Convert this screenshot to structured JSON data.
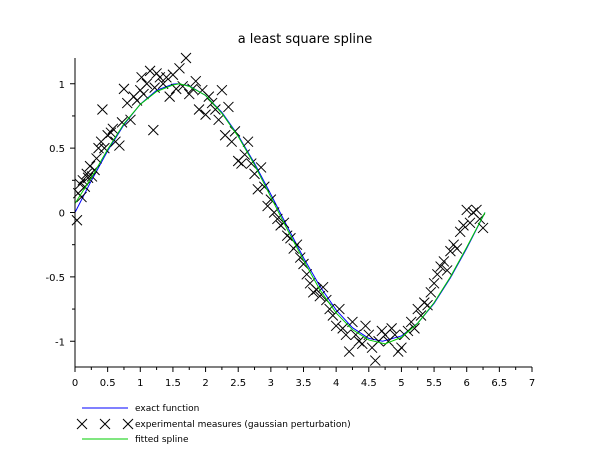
{
  "chart_data": {
    "type": "scatter",
    "title": "a least square spline",
    "xlim": [
      0,
      7
    ],
    "ylim": [
      -1.2,
      1.2
    ],
    "xticks": [
      "0",
      "0.5",
      "1",
      "1.5",
      "2",
      "2.5",
      "3",
      "3.5",
      "4",
      "4.5",
      "5",
      "5.5",
      "6",
      "6.5",
      "7"
    ],
    "yticks": [
      "-1",
      "-0.5",
      "0",
      "0.5",
      "1"
    ],
    "ytick_values": [
      -1,
      -0.5,
      0,
      0.5,
      1
    ],
    "grid": false,
    "legend_position": "bottom-left, below plot",
    "series": [
      {
        "name": "exact function",
        "kind": "line",
        "color": "#0000ff",
        "x": [
          0,
          0.25,
          0.5,
          0.75,
          1,
          1.25,
          1.5,
          1.571,
          1.75,
          2,
          2.25,
          2.5,
          2.75,
          3,
          3.25,
          3.5,
          3.75,
          4,
          4.25,
          4.5,
          4.712,
          5,
          5.25,
          5.5,
          5.75,
          6,
          6.28
        ],
        "y": [
          0,
          0.247,
          0.479,
          0.682,
          0.841,
          0.949,
          0.997,
          1,
          0.984,
          0.909,
          0.778,
          0.598,
          0.382,
          0.141,
          -0.108,
          -0.351,
          -0.572,
          -0.757,
          -0.895,
          -0.978,
          -1,
          -0.959,
          -0.859,
          -0.706,
          -0.508,
          -0.279,
          0
        ]
      },
      {
        "name": "experimental measures (gaussian perturbation)",
        "kind": "scatter",
        "marker": "x",
        "color": "#000000",
        "x": [
          0.03,
          0.05,
          0.08,
          0.1,
          0.12,
          0.15,
          0.18,
          0.2,
          0.23,
          0.26,
          0.3,
          0.33,
          0.36,
          0.4,
          0.42,
          0.45,
          0.5,
          0.55,
          0.58,
          0.62,
          0.68,
          0.72,
          0.75,
          0.8,
          0.85,
          0.9,
          0.95,
          1.0,
          1.02,
          1.05,
          1.1,
          1.15,
          1.2,
          1.22,
          1.25,
          1.3,
          1.35,
          1.4,
          1.45,
          1.5,
          1.55,
          1.6,
          1.65,
          1.7,
          1.75,
          1.8,
          1.85,
          1.9,
          1.95,
          2.0,
          2.05,
          2.1,
          2.15,
          2.2,
          2.25,
          2.3,
          2.35,
          2.4,
          2.45,
          2.5,
          2.55,
          2.6,
          2.65,
          2.7,
          2.75,
          2.8,
          2.85,
          2.9,
          2.95,
          3.0,
          3.05,
          3.1,
          3.15,
          3.2,
          3.25,
          3.3,
          3.35,
          3.4,
          3.45,
          3.5,
          3.55,
          3.6,
          3.65,
          3.7,
          3.75,
          3.8,
          3.85,
          3.9,
          3.95,
          4.0,
          4.05,
          4.1,
          4.15,
          4.2,
          4.25,
          4.3,
          4.35,
          4.4,
          4.45,
          4.5,
          4.55,
          4.6,
          4.65,
          4.7,
          4.75,
          4.8,
          4.85,
          4.9,
          4.95,
          5.0,
          5.05,
          5.1,
          5.15,
          5.2,
          5.25,
          5.3,
          5.35,
          5.4,
          5.45,
          5.5,
          5.55,
          5.6,
          5.65,
          5.7,
          5.75,
          5.8,
          5.85,
          5.9,
          5.95,
          6.0,
          6.05,
          6.1,
          6.15,
          6.2,
          6.25
        ],
        "y": [
          -0.06,
          0.15,
          0.22,
          0.12,
          0.25,
          0.2,
          0.3,
          0.27,
          0.36,
          0.28,
          0.33,
          0.42,
          0.5,
          0.55,
          0.8,
          0.5,
          0.6,
          0.62,
          0.65,
          0.55,
          0.52,
          0.7,
          0.96,
          0.85,
          0.72,
          0.9,
          0.87,
          0.95,
          1.05,
          0.92,
          1.0,
          1.1,
          0.64,
          0.97,
          1.08,
          1.05,
          1.0,
          1.05,
          0.9,
          1.07,
          0.96,
          1.12,
          0.98,
          1.2,
          0.92,
          0.96,
          1.02,
          0.8,
          0.95,
          0.76,
          0.9,
          0.85,
          0.8,
          0.72,
          0.95,
          0.6,
          0.82,
          0.55,
          0.63,
          0.4,
          0.38,
          0.45,
          0.55,
          0.38,
          0.3,
          0.18,
          0.35,
          0.2,
          0.05,
          0.1,
          0.0,
          -0.05,
          -0.1,
          -0.08,
          -0.18,
          -0.2,
          -0.28,
          -0.25,
          -0.35,
          -0.4,
          -0.48,
          -0.55,
          -0.62,
          -0.6,
          -0.65,
          -0.58,
          -0.68,
          -0.75,
          -0.8,
          -0.88,
          -0.75,
          -0.9,
          -0.95,
          -1.08,
          -0.85,
          -0.95,
          -1.0,
          -1.02,
          -0.88,
          -0.95,
          -1.05,
          -1.15,
          -1.0,
          -0.92,
          -0.95,
          -1.0,
          -0.9,
          -0.95,
          -1.08,
          -1.05,
          -0.95,
          -0.92,
          -0.85,
          -0.9,
          -0.75,
          -0.8,
          -0.7,
          -0.72,
          -0.62,
          -0.55,
          -0.48,
          -0.42,
          -0.38,
          -0.45,
          -0.3,
          -0.25,
          -0.28,
          -0.15,
          -0.1,
          0.02,
          -0.08,
          0.0,
          0.02,
          -0.05,
          -0.12
        ]
      },
      {
        "name": "fitted spline",
        "kind": "line",
        "color": "#00cc00",
        "x": [
          0,
          0.25,
          0.5,
          0.75,
          1,
          1.25,
          1.5,
          1.6,
          1.75,
          2,
          2.25,
          2.5,
          2.75,
          3,
          3.25,
          3.5,
          3.75,
          4,
          4.25,
          4.5,
          4.75,
          5,
          5.25,
          5.5,
          5.75,
          6,
          6.28
        ],
        "y": [
          0.07,
          0.27,
          0.49,
          0.69,
          0.84,
          0.94,
          0.99,
          1.0,
          0.98,
          0.91,
          0.77,
          0.59,
          0.37,
          0.12,
          -0.13,
          -0.37,
          -0.6,
          -0.78,
          -0.91,
          -0.99,
          -1.02,
          -0.97,
          -0.86,
          -0.7,
          -0.5,
          -0.27,
          0.0
        ]
      }
    ]
  }
}
